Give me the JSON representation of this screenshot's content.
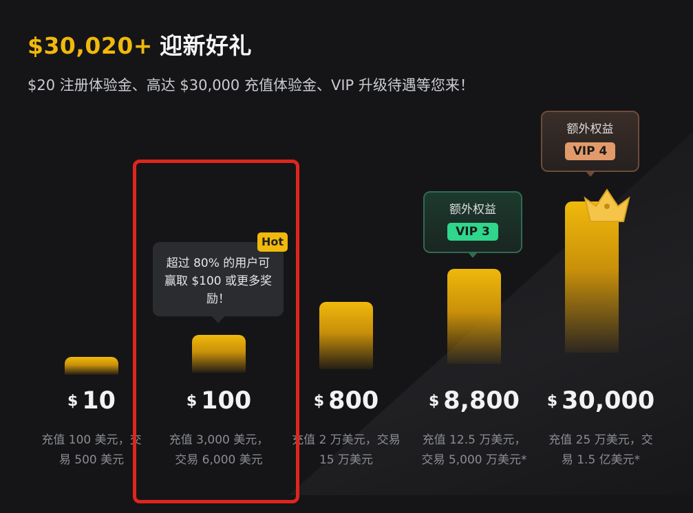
{
  "header": {
    "amount": "$30,020+",
    "title_rest": "迎新好礼",
    "subtitle": "$20 注册体验金、高达 $30,000 充值体验金、VIP 升级待遇等您来！"
  },
  "tiers": [
    {
      "currency": "$",
      "value": "10",
      "desc": "充值 100 美元，交易 500 美元"
    },
    {
      "currency": "$",
      "value": "100",
      "desc": "充值 3,000 美元，交易 6,000 美元"
    },
    {
      "currency": "$",
      "value": "800",
      "desc": "充值 2 万美元，交易 15 万美元"
    },
    {
      "currency": "$",
      "value": "8,800",
      "desc": "充值 12.5 万美元，交易 5,000 万美元*"
    },
    {
      "currency": "$",
      "value": "30,000",
      "desc": "充值 25 万美元，交易 1.5 亿美元*"
    }
  ],
  "tooltip": {
    "text": "超过 80% 的用户可赢取 $100 或更多奖励！",
    "badge": "Hot"
  },
  "perks": [
    {
      "label": "额外权益",
      "vip": "VIP 3",
      "color": "#2fd68b"
    },
    {
      "label": "额外权益",
      "vip": "VIP 4",
      "color": "#e29a6a"
    }
  ],
  "colors": {
    "accent": "#f0b90b",
    "highlight": "#e0251b",
    "background": "#151517"
  }
}
